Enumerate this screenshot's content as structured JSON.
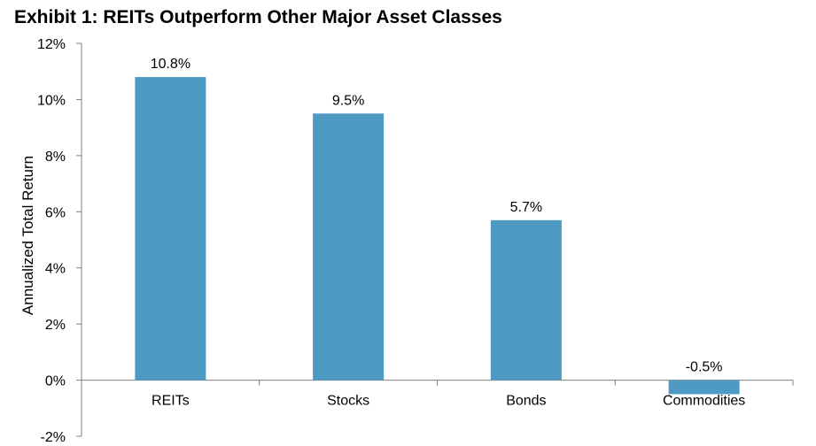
{
  "chart_data": {
    "type": "bar",
    "title": "Exhibit 1: REITs Outperform Other Major Asset Classes",
    "xlabel": "",
    "ylabel": "Annualized Total Return",
    "categories": [
      "REITs",
      "Stocks",
      "Bonds",
      "Commodities"
    ],
    "values": [
      10.8,
      9.5,
      5.7,
      -0.5
    ],
    "data_labels": [
      "10.8%",
      "9.5%",
      "5.7%",
      "-0.5%"
    ],
    "ylim": [
      -2,
      12
    ],
    "yticks": [
      12,
      10,
      8,
      6,
      4,
      2,
      0,
      -2
    ],
    "ytick_labels": [
      "12%",
      "10%",
      "8%",
      "6%",
      "4%",
      "2%",
      "0%",
      "-2%"
    ],
    "grid": false,
    "legend": "none",
    "bar_color": "#4F9AC3"
  }
}
